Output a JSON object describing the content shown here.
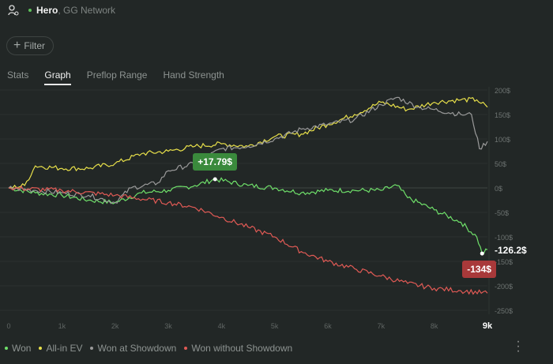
{
  "header": {
    "player": "Hero",
    "network": ", GG Network",
    "icon": "user-settings-icon"
  },
  "filter": {
    "label": "Filter"
  },
  "tabs": [
    {
      "label": "Stats"
    },
    {
      "label": "Graph",
      "active": true
    },
    {
      "label": "Preflop Range"
    },
    {
      "label": "Hand Strength"
    }
  ],
  "chart_data": {
    "type": "line",
    "xlim": [
      0,
      9000
    ],
    "ylim": [
      -250,
      200
    ],
    "x_ticks": [
      "0",
      "1k",
      "2k",
      "3k",
      "4k",
      "5k",
      "6k",
      "7k",
      "8k",
      "9k"
    ],
    "y_ticks": [
      "200$",
      "150$",
      "100$",
      "50$",
      "0$",
      "-50$",
      "-100$",
      "-150$",
      "-200$",
      "-250$"
    ],
    "y_tick_values": [
      200,
      150,
      100,
      50,
      0,
      -50,
      -100,
      -150,
      -200,
      -250
    ],
    "series": [
      {
        "name": "Won",
        "color": "#6fe06a",
        "points": [
          [
            0,
            0
          ],
          [
            500,
            -10
          ],
          [
            1000,
            -15
          ],
          [
            1500,
            -25
          ],
          [
            2000,
            -30
          ],
          [
            2500,
            -10
          ],
          [
            3000,
            -5
          ],
          [
            3500,
            5
          ],
          [
            3880,
            17.79
          ],
          [
            4500,
            5
          ],
          [
            5000,
            0
          ],
          [
            5500,
            -10
          ],
          [
            6000,
            -5
          ],
          [
            6500,
            -5
          ],
          [
            7000,
            -5
          ],
          [
            7300,
            5
          ],
          [
            7500,
            -20
          ],
          [
            8000,
            -45
          ],
          [
            8500,
            -70
          ],
          [
            8800,
            -100
          ],
          [
            8900,
            -134
          ],
          [
            9000,
            -126.2
          ]
        ]
      },
      {
        "name": "All-in EV",
        "color": "#e8e04a",
        "points": [
          [
            0,
            0
          ],
          [
            300,
            5
          ],
          [
            500,
            45
          ],
          [
            1000,
            40
          ],
          [
            1500,
            40
          ],
          [
            2000,
            50
          ],
          [
            2500,
            70
          ],
          [
            3000,
            75
          ],
          [
            3500,
            85
          ],
          [
            4000,
            90
          ],
          [
            4500,
            85
          ],
          [
            5000,
            105
          ],
          [
            5500,
            110
          ],
          [
            6000,
            130
          ],
          [
            6500,
            150
          ],
          [
            7000,
            175
          ],
          [
            7500,
            160
          ],
          [
            8000,
            175
          ],
          [
            8500,
            180
          ],
          [
            8800,
            180
          ],
          [
            9000,
            165
          ]
        ]
      },
      {
        "name": "Won at Showdown",
        "color": "#9a9a9a",
        "points": [
          [
            0,
            0
          ],
          [
            500,
            -5
          ],
          [
            1000,
            -10
          ],
          [
            1500,
            -15
          ],
          [
            2000,
            -30
          ],
          [
            2300,
            0
          ],
          [
            2800,
            10
          ],
          [
            3000,
            35
          ],
          [
            3500,
            50
          ],
          [
            4000,
            80
          ],
          [
            4500,
            85
          ],
          [
            5000,
            100
          ],
          [
            5500,
            120
          ],
          [
            6000,
            130
          ],
          [
            6500,
            140
          ],
          [
            7000,
            170
          ],
          [
            7300,
            185
          ],
          [
            7700,
            165
          ],
          [
            8000,
            160
          ],
          [
            8500,
            150
          ],
          [
            8700,
            150
          ],
          [
            8850,
            80
          ],
          [
            9000,
            95
          ]
        ]
      },
      {
        "name": "Won without Showdown",
        "color": "#e05a55",
        "points": [
          [
            0,
            0
          ],
          [
            1000,
            -5
          ],
          [
            2000,
            -15
          ],
          [
            3000,
            -30
          ],
          [
            3500,
            -40
          ],
          [
            4000,
            -60
          ],
          [
            4500,
            -80
          ],
          [
            5000,
            -100
          ],
          [
            5500,
            -130
          ],
          [
            6000,
            -150
          ],
          [
            6500,
            -165
          ],
          [
            7000,
            -180
          ],
          [
            7500,
            -195
          ],
          [
            8000,
            -205
          ],
          [
            8500,
            -210
          ],
          [
            9000,
            -215
          ]
        ]
      }
    ],
    "annotations": [
      {
        "text": "+17.79$",
        "x": 3880,
        "y": 17.79,
        "color": "#3a8a3c"
      },
      {
        "text": "-134$",
        "x": 8900,
        "y": -134,
        "color": "#a8393a"
      },
      {
        "text": "-126.2$",
        "x": 9000,
        "y": -126.2
      }
    ],
    "legend_position": "bottom-left"
  },
  "menu_icon": "more-vertical-icon"
}
